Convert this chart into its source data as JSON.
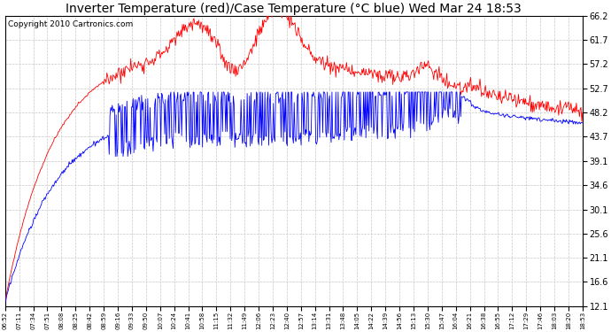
{
  "title": "Inverter Temperature (red)/Case Temperature (°C blue) Wed Mar 24 18:53",
  "copyright": "Copyright 2010 Cartronics.com",
  "yticks": [
    12.1,
    16.6,
    21.1,
    25.6,
    30.1,
    34.6,
    39.1,
    43.7,
    48.2,
    52.7,
    57.2,
    61.7,
    66.2
  ],
  "xtick_labels": [
    "06:52",
    "07:11",
    "07:34",
    "07:51",
    "08:08",
    "08:25",
    "08:42",
    "08:59",
    "09:16",
    "09:33",
    "09:50",
    "10:07",
    "10:24",
    "10:41",
    "10:58",
    "11:15",
    "11:32",
    "11:49",
    "12:06",
    "12:23",
    "12:40",
    "12:57",
    "13:14",
    "13:31",
    "13:48",
    "14:05",
    "14:22",
    "14:39",
    "14:56",
    "15:13",
    "15:30",
    "15:47",
    "16:04",
    "16:21",
    "16:38",
    "16:55",
    "17:12",
    "17:29",
    "17:46",
    "18:03",
    "18:20",
    "18:53"
  ],
  "ymin": 12.1,
  "ymax": 66.2,
  "bg_color": "#ffffff",
  "plot_bg_color": "#ffffff",
  "grid_color": "#c8c8c8",
  "red_color": "#ff0000",
  "blue_color": "#0000ff",
  "title_fontsize": 10,
  "copyright_fontsize": 6.5,
  "n_points": 750
}
